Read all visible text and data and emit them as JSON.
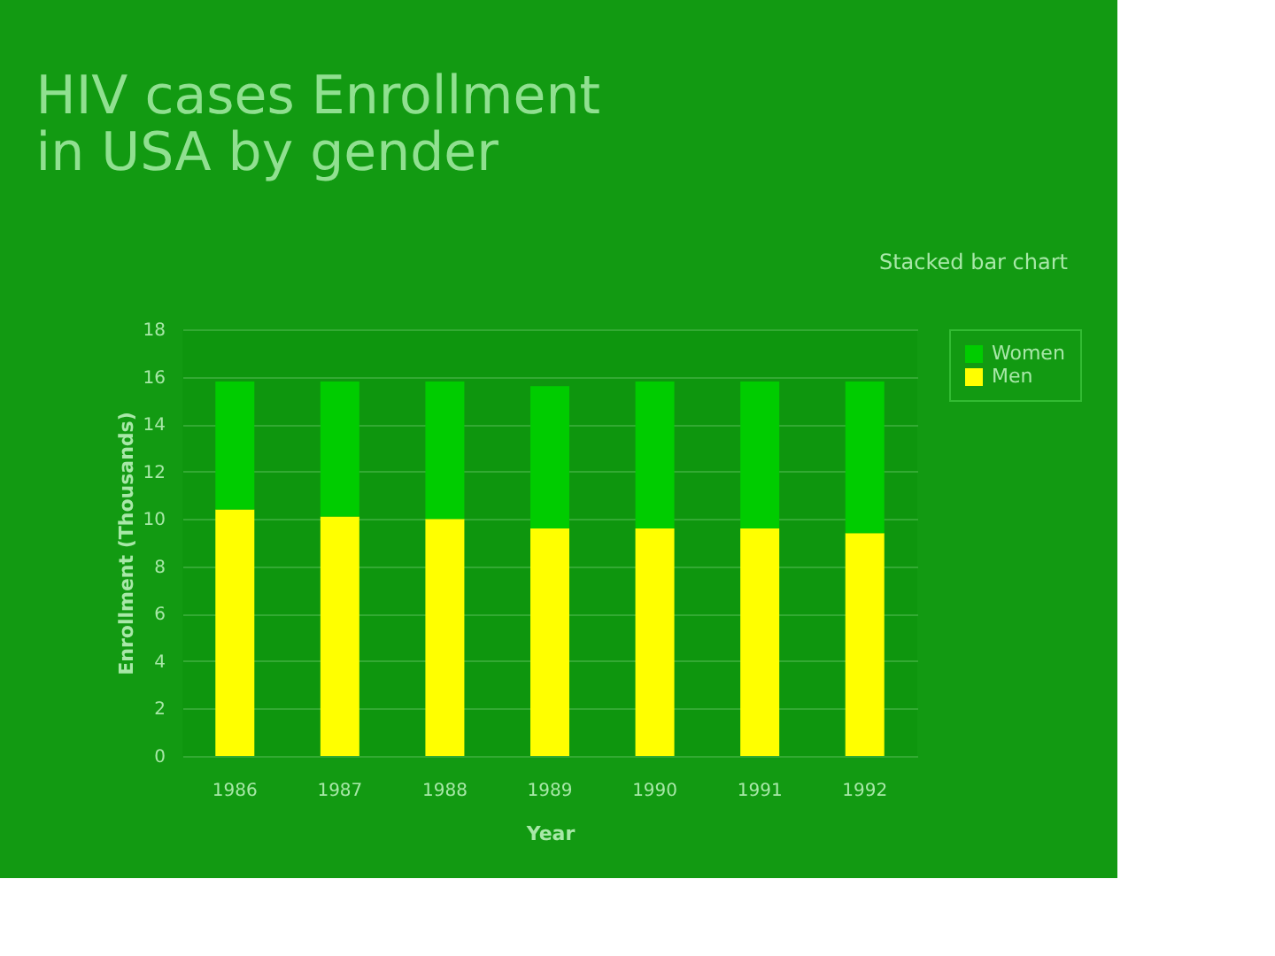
{
  "chart_data": {
    "type": "bar",
    "title": [
      "HIV cases  Enrollment",
      "in USA by gender"
    ],
    "subtitle": "Stacked bar chart",
    "xlabel": "Year",
    "ylabel": "Enrollment (Thousands)",
    "categories": [
      "1986",
      "1987",
      "1988",
      "1989",
      "1990",
      "1991",
      "1992"
    ],
    "series": [
      {
        "name": "Men",
        "color": "#ffff00",
        "values": [
          10.4,
          10.1,
          10.0,
          9.6,
          9.6,
          9.6,
          9.4
        ]
      },
      {
        "name": "Women",
        "color": "#00cc00",
        "values": [
          5.4,
          5.7,
          5.8,
          6.0,
          6.2,
          6.2,
          6.4
        ]
      }
    ],
    "stacked": true,
    "ylim": [
      0,
      18
    ],
    "yticks": [
      0,
      2,
      4,
      6,
      8,
      10,
      12,
      14,
      16,
      18
    ],
    "grid": "y",
    "legend": "right"
  }
}
